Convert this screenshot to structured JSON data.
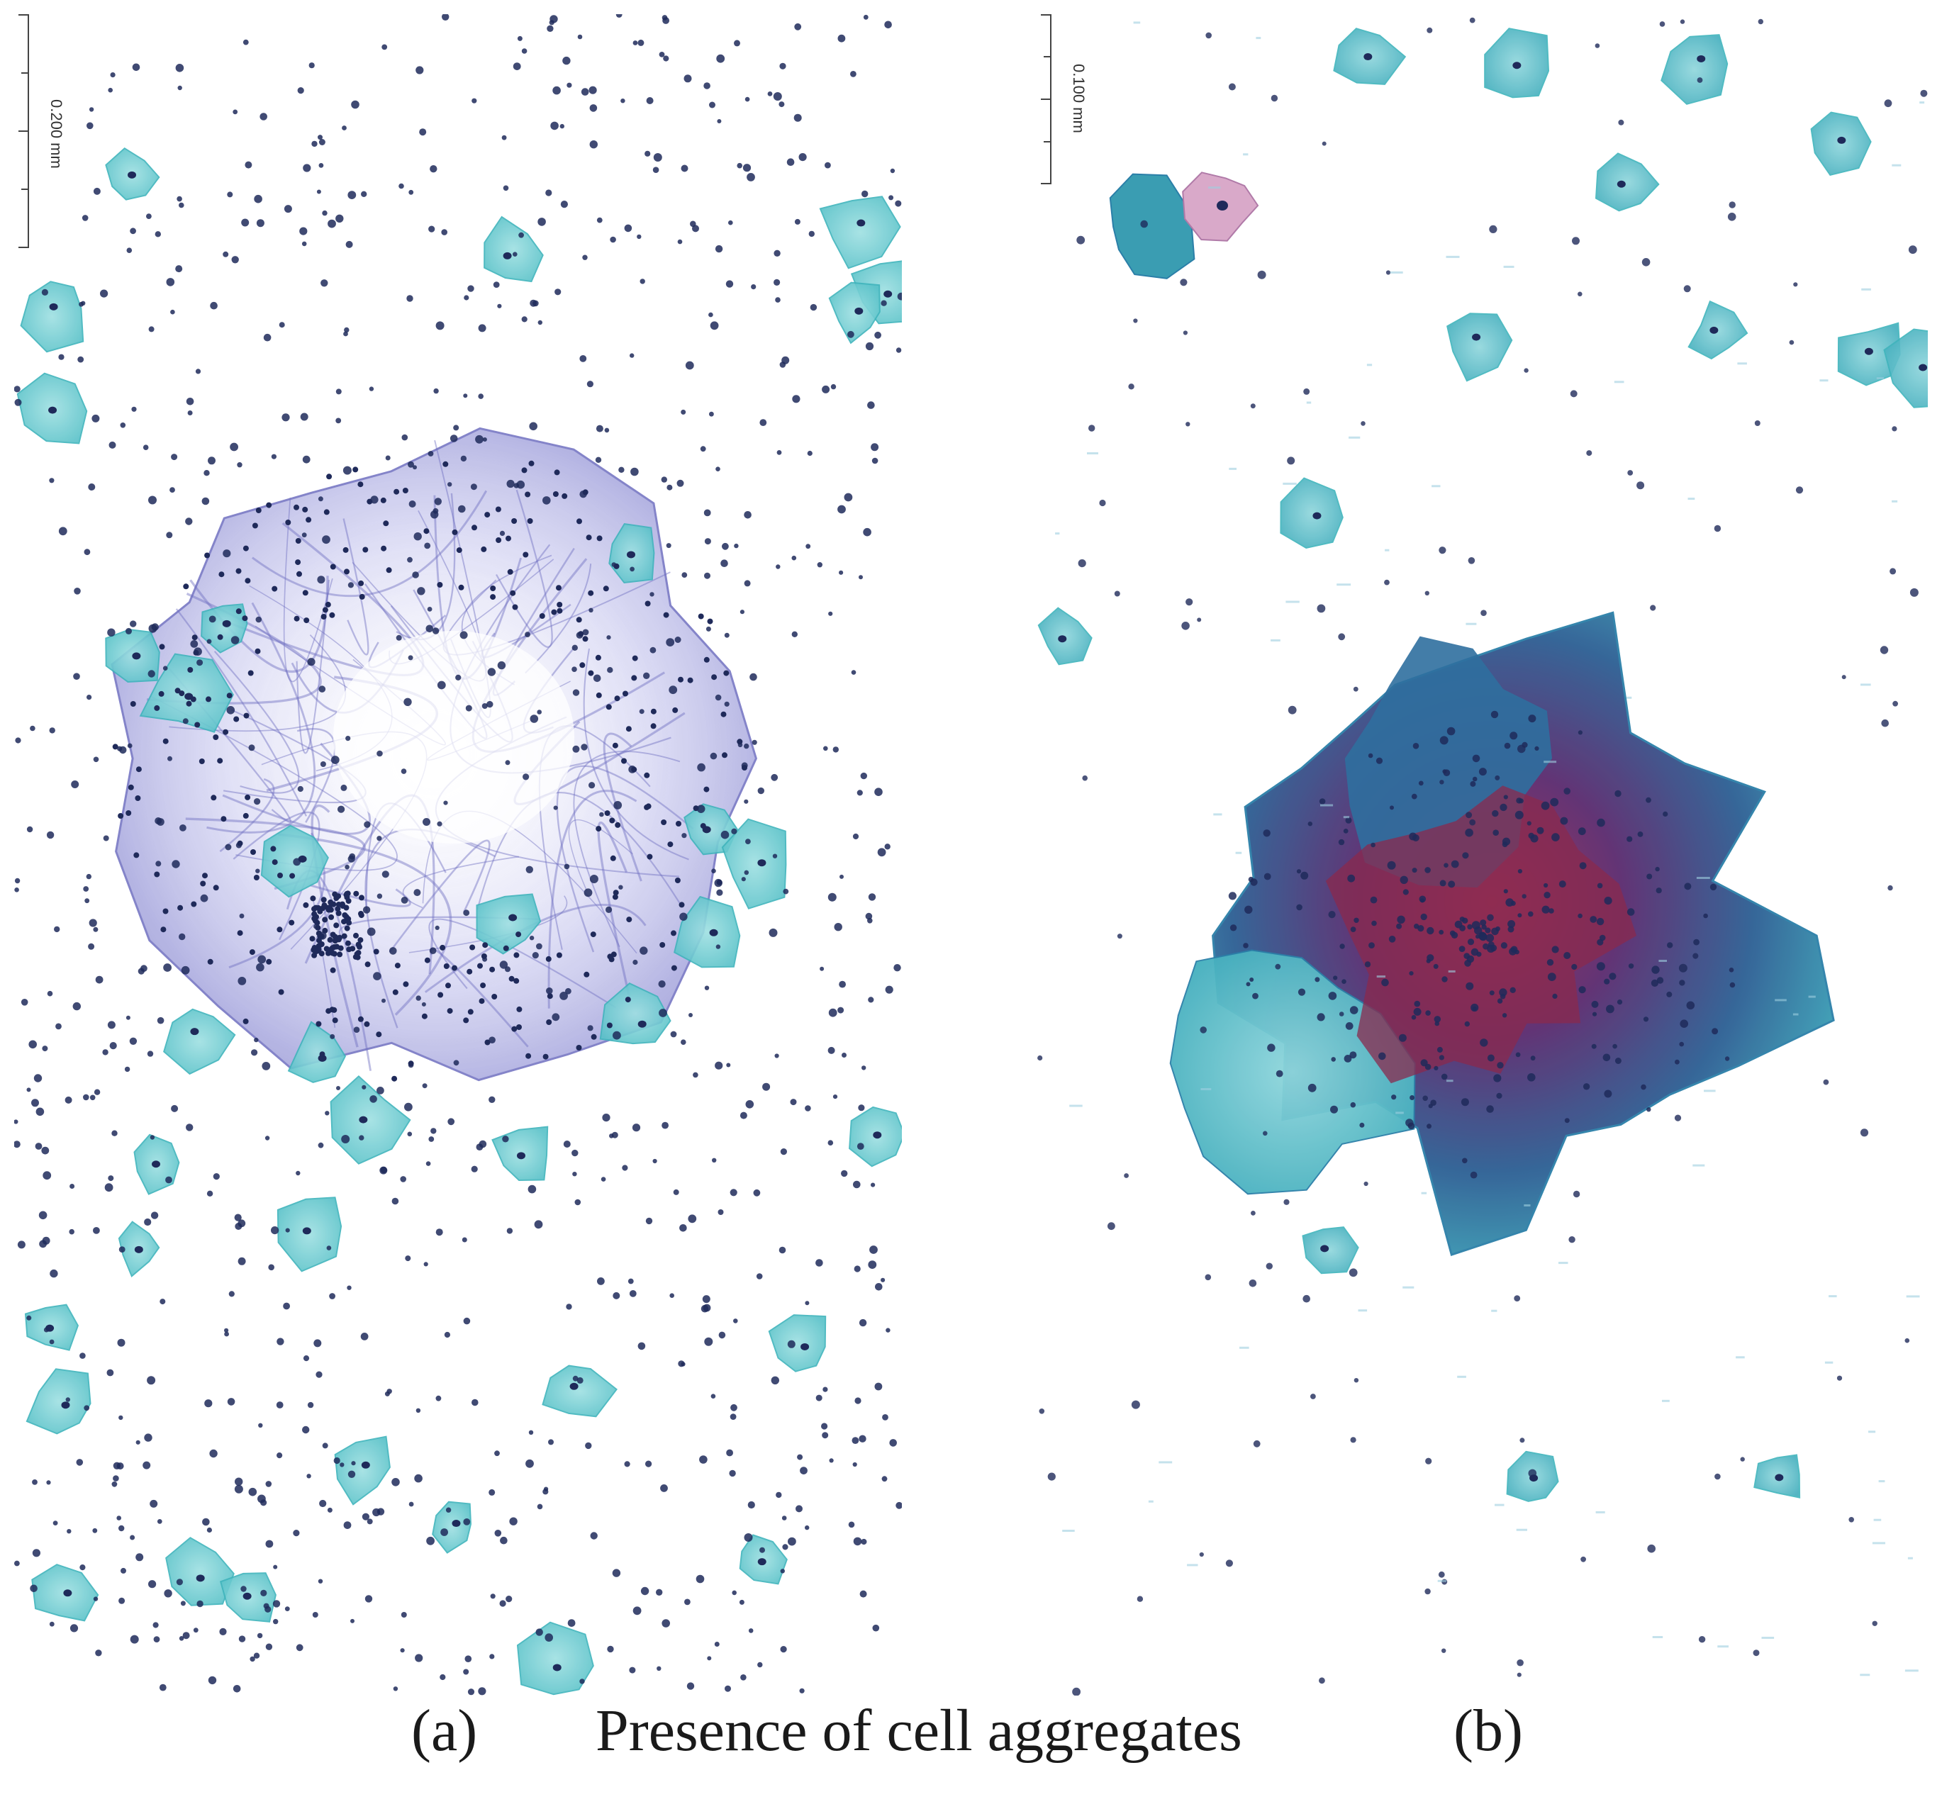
{
  "panels": [
    {
      "id": "a",
      "scale_label": "0.200 mm"
    },
    {
      "id": "b",
      "scale_label": "0.100 mm"
    }
  ],
  "caption": {
    "label_a": "(a)",
    "title": "Presence of cell aggregates",
    "label_b": "(b)"
  },
  "colors": {
    "background": "#ffffff",
    "squamous_cell": "#7fd3d6",
    "squamous_cell_dark": "#3fb4bc",
    "nucleus": "#1f2a5a",
    "mucus_strands": "#6f6fc0",
    "aggregate_core": "#8a2a4e",
    "aggregate_edge": "#2b7fa8"
  }
}
